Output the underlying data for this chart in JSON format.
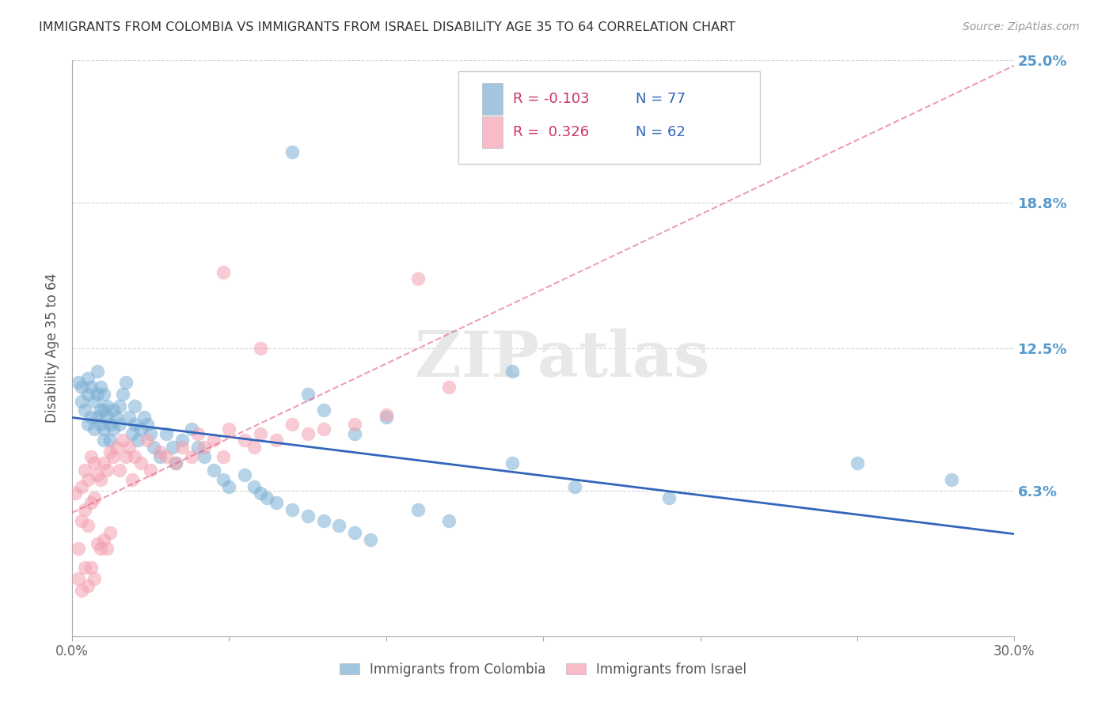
{
  "title": "IMMIGRANTS FROM COLOMBIA VS IMMIGRANTS FROM ISRAEL DISABILITY AGE 35 TO 64 CORRELATION CHART",
  "source": "Source: ZipAtlas.com",
  "ylabel": "Disability Age 35 to 64",
  "x_min": 0.0,
  "x_max": 0.3,
  "y_min": 0.0,
  "y_max": 0.25,
  "x_ticks": [
    0.0,
    0.05,
    0.1,
    0.15,
    0.2,
    0.25,
    0.3
  ],
  "x_tick_labels": [
    "0.0%",
    "",
    "",
    "",
    "",
    "",
    "30.0%"
  ],
  "y_ticks": [
    0.0,
    0.063,
    0.125,
    0.188,
    0.25
  ],
  "y_tick_labels": [
    "",
    "6.3%",
    "12.5%",
    "18.8%",
    "25.0%"
  ],
  "color_colombia": "#7BAFD4",
  "color_israel": "#F4A0B0",
  "line_color_colombia": "#3366BB",
  "line_color_israel": "#E06080",
  "legend_R_colombia": "-0.103",
  "legend_N_colombia": "77",
  "legend_R_israel": "0.326",
  "legend_N_israel": "62",
  "colombia_x": [
    0.002,
    0.003,
    0.003,
    0.004,
    0.005,
    0.005,
    0.005,
    0.006,
    0.006,
    0.007,
    0.007,
    0.008,
    0.008,
    0.008,
    0.009,
    0.009,
    0.009,
    0.01,
    0.01,
    0.01,
    0.01,
    0.011,
    0.011,
    0.012,
    0.012,
    0.013,
    0.013,
    0.014,
    0.015,
    0.015,
    0.016,
    0.017,
    0.018,
    0.019,
    0.02,
    0.02,
    0.021,
    0.022,
    0.023,
    0.024,
    0.025,
    0.026,
    0.028,
    0.03,
    0.032,
    0.033,
    0.035,
    0.038,
    0.04,
    0.042,
    0.045,
    0.048,
    0.05,
    0.055,
    0.058,
    0.06,
    0.062,
    0.065,
    0.07,
    0.075,
    0.08,
    0.085,
    0.09,
    0.095,
    0.1,
    0.11,
    0.12,
    0.14,
    0.16,
    0.19,
    0.07,
    0.075,
    0.08,
    0.09,
    0.14,
    0.25,
    0.28
  ],
  "colombia_y": [
    0.11,
    0.108,
    0.102,
    0.098,
    0.112,
    0.105,
    0.092,
    0.108,
    0.095,
    0.102,
    0.09,
    0.115,
    0.105,
    0.095,
    0.108,
    0.098,
    0.092,
    0.105,
    0.098,
    0.09,
    0.085,
    0.1,
    0.095,
    0.092,
    0.085,
    0.098,
    0.09,
    0.095,
    0.1,
    0.092,
    0.105,
    0.11,
    0.095,
    0.088,
    0.092,
    0.1,
    0.085,
    0.09,
    0.095,
    0.092,
    0.088,
    0.082,
    0.078,
    0.088,
    0.082,
    0.075,
    0.085,
    0.09,
    0.082,
    0.078,
    0.072,
    0.068,
    0.065,
    0.07,
    0.065,
    0.062,
    0.06,
    0.058,
    0.055,
    0.052,
    0.05,
    0.048,
    0.045,
    0.042,
    0.095,
    0.055,
    0.05,
    0.075,
    0.065,
    0.06,
    0.21,
    0.105,
    0.098,
    0.088,
    0.115,
    0.075,
    0.068
  ],
  "israel_x": [
    0.001,
    0.002,
    0.002,
    0.003,
    0.003,
    0.003,
    0.004,
    0.004,
    0.004,
    0.005,
    0.005,
    0.005,
    0.006,
    0.006,
    0.006,
    0.007,
    0.007,
    0.007,
    0.008,
    0.008,
    0.009,
    0.009,
    0.01,
    0.01,
    0.011,
    0.011,
    0.012,
    0.012,
    0.013,
    0.014,
    0.015,
    0.016,
    0.017,
    0.018,
    0.019,
    0.02,
    0.022,
    0.024,
    0.025,
    0.028,
    0.03,
    0.033,
    0.035,
    0.038,
    0.04,
    0.042,
    0.045,
    0.048,
    0.05,
    0.055,
    0.058,
    0.06,
    0.065,
    0.07,
    0.075,
    0.08,
    0.09,
    0.1,
    0.11,
    0.12,
    0.048,
    0.06
  ],
  "israel_y": [
    0.062,
    0.038,
    0.025,
    0.065,
    0.05,
    0.02,
    0.072,
    0.055,
    0.03,
    0.068,
    0.048,
    0.022,
    0.078,
    0.058,
    0.03,
    0.075,
    0.06,
    0.025,
    0.07,
    0.04,
    0.068,
    0.038,
    0.075,
    0.042,
    0.072,
    0.038,
    0.08,
    0.045,
    0.078,
    0.082,
    0.072,
    0.085,
    0.078,
    0.082,
    0.068,
    0.078,
    0.075,
    0.085,
    0.072,
    0.08,
    0.078,
    0.075,
    0.082,
    0.078,
    0.088,
    0.082,
    0.085,
    0.078,
    0.09,
    0.085,
    0.082,
    0.088,
    0.085,
    0.092,
    0.088,
    0.09,
    0.092,
    0.096,
    0.155,
    0.108,
    0.158,
    0.125
  ],
  "background_color": "#FFFFFF",
  "grid_color": "#CCCCCC",
  "tick_color_right": "#5599CC",
  "font_color_title": "#333333",
  "watermark_text": "ZIPatlas",
  "watermark_color": "#E8E8E8"
}
